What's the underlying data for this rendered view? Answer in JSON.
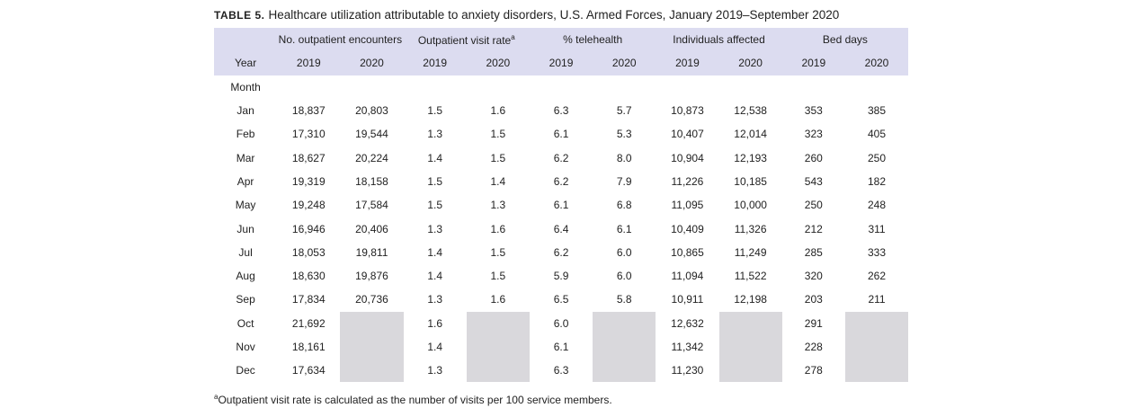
{
  "title": {
    "label": "TABLE 5.",
    "text": "Healthcare utilization attributable to anxiety disorders, U.S. Armed Forces, January 2019–September 2020"
  },
  "table": {
    "groups": [
      "No. outpatient encounters",
      "Outpatient visit rate",
      "% telehealth",
      "Individuals affected",
      "Bed days"
    ],
    "superscript": "a",
    "year_label": "Year",
    "years": [
      "2019",
      "2020"
    ],
    "month_label": "Month",
    "rows": [
      [
        "Jan",
        "18,837",
        "20,803",
        "1.5",
        "1.6",
        "6.3",
        "5.7",
        "10,873",
        "12,538",
        "353",
        "385"
      ],
      [
        "Feb",
        "17,310",
        "19,544",
        "1.3",
        "1.5",
        "6.1",
        "5.3",
        "10,407",
        "12,014",
        "323",
        "405"
      ],
      [
        "Mar",
        "18,627",
        "20,224",
        "1.4",
        "1.5",
        "6.2",
        "8.0",
        "10,904",
        "12,193",
        "260",
        "250"
      ],
      [
        "Apr",
        "19,319",
        "18,158",
        "1.5",
        "1.4",
        "6.2",
        "7.9",
        "11,226",
        "10,185",
        "543",
        "182"
      ],
      [
        "May",
        "19,248",
        "17,584",
        "1.5",
        "1.3",
        "6.1",
        "6.8",
        "11,095",
        "10,000",
        "250",
        "248"
      ],
      [
        "Jun",
        "16,946",
        "20,406",
        "1.3",
        "1.6",
        "6.4",
        "6.1",
        "10,409",
        "11,326",
        "212",
        "311"
      ],
      [
        "Jul",
        "18,053",
        "19,811",
        "1.4",
        "1.5",
        "6.2",
        "6.0",
        "10,865",
        "11,249",
        "285",
        "333"
      ],
      [
        "Aug",
        "18,630",
        "19,876",
        "1.4",
        "1.5",
        "5.9",
        "6.0",
        "11,094",
        "11,522",
        "320",
        "262"
      ],
      [
        "Sep",
        "17,834",
        "20,736",
        "1.3",
        "1.6",
        "6.5",
        "5.8",
        "10,911",
        "12,198",
        "203",
        "211"
      ],
      [
        "Oct",
        "21,692",
        null,
        "1.6",
        null,
        "6.0",
        null,
        "12,632",
        null,
        "291",
        null
      ],
      [
        "Nov",
        "18,161",
        null,
        "1.4",
        null,
        "6.1",
        null,
        "11,342",
        null,
        "228",
        null
      ],
      [
        "Dec",
        "17,634",
        null,
        "1.3",
        null,
        "6.3",
        null,
        "11,230",
        null,
        "278",
        null
      ]
    ]
  },
  "footnote": {
    "mark": "a",
    "text": "Outpatient visit rate is calculated as the number of visits  per 100 service members."
  }
}
